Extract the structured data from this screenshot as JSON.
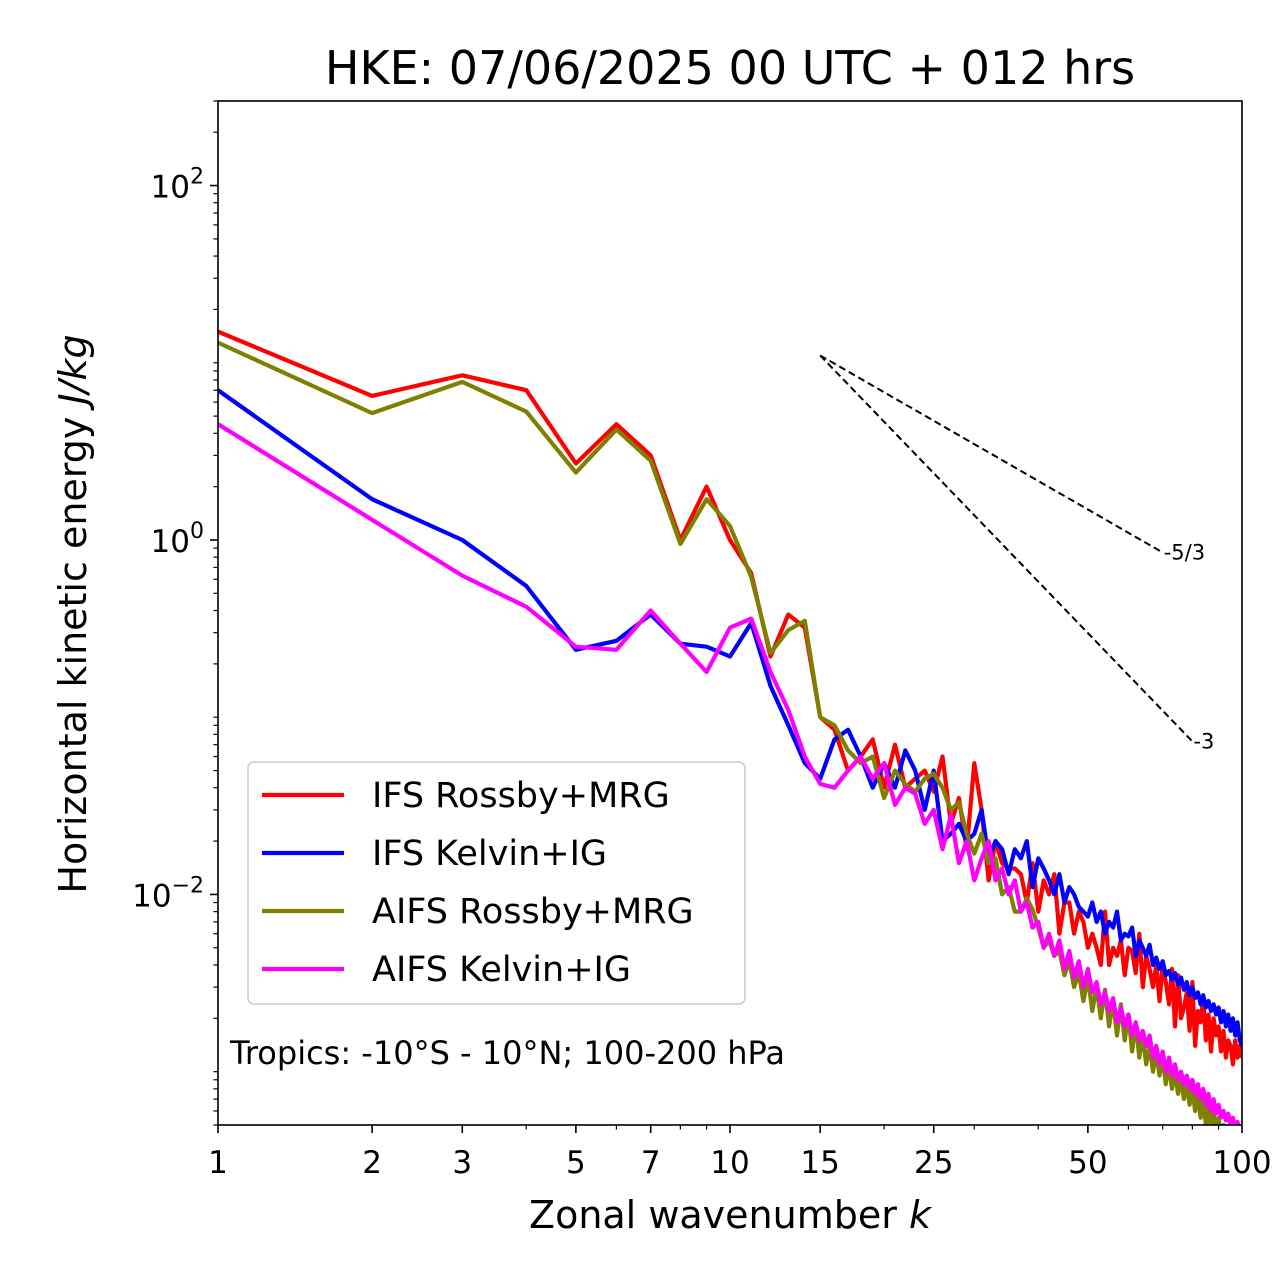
{
  "chart_data": {
    "type": "line",
    "title": "HKE: 07/06/2025 00 UTC + 012 hrs",
    "xlabel": "Zonal wavenumber",
    "xlabel_var": "k",
    "ylabel": "Horizontal kinetic energy",
    "ylabel_unit": "J/kg",
    "xscale": "log",
    "yscale": "log",
    "xlim": [
      1,
      100
    ],
    "ylim": [
      0.0005,
      300
    ],
    "x_ticks": [
      1,
      2,
      3,
      5,
      7,
      10,
      15,
      25,
      50,
      100
    ],
    "x_tick_labels": [
      "1",
      "2",
      "3",
      "5",
      "7",
      "10",
      "15",
      "25",
      "50",
      "100"
    ],
    "y_ticks": [
      0.01,
      1,
      100
    ],
    "y_tick_labels": [
      {
        "base": "10",
        "exp": "−2"
      },
      {
        "base": "10",
        "exp": "0"
      },
      {
        "base": "10",
        "exp": "2"
      }
    ],
    "grid": false,
    "legend_position": "lower-left",
    "annotation": "Tropics: -10°S - 10°N; 100-200 hPa",
    "reference_slopes": [
      {
        "label": "-5/3",
        "slope": -1.6667,
        "x_start": 15,
        "y_start": 11,
        "x_end": 70,
        "y_end": 0.85
      },
      {
        "label": "-3",
        "slope": -3,
        "x_start": 15,
        "y_start": 11,
        "x_end": 80,
        "y_end": 0.073
      }
    ],
    "series": [
      {
        "name": "IFS Rossby+MRG",
        "color": "#ff0000",
        "x": [
          1,
          2,
          3,
          4,
          5,
          6,
          7,
          8,
          9,
          10,
          11,
          12,
          13,
          14,
          15,
          16,
          17,
          18,
          19,
          20,
          21,
          22,
          23,
          24,
          25,
          26,
          27,
          28,
          29,
          30,
          31,
          32,
          33,
          34,
          35,
          36,
          37,
          38,
          39,
          40,
          41,
          42,
          43,
          44,
          45,
          46,
          47,
          48,
          49,
          50,
          51,
          52,
          53,
          54,
          55,
          56,
          57,
          58,
          59,
          60,
          61,
          62,
          63,
          64,
          65,
          66,
          67,
          68,
          69,
          70,
          71,
          72,
          73,
          74,
          75,
          76,
          77,
          78,
          79,
          80,
          81,
          82,
          83,
          84,
          85,
          86,
          87,
          88,
          89,
          90,
          91,
          92,
          93,
          94,
          95,
          96,
          97,
          98,
          99,
          100
        ],
        "y": [
          15,
          6.5,
          8.5,
          7,
          2.7,
          4.5,
          3,
          1,
          2,
          1,
          0.65,
          0.22,
          0.38,
          0.32,
          0.1,
          0.085,
          0.05,
          0.06,
          0.075,
          0.04,
          0.07,
          0.04,
          0.045,
          0.05,
          0.038,
          0.06,
          0.025,
          0.035,
          0.018,
          0.055,
          0.03,
          0.012,
          0.02,
          0.015,
          0.014,
          0.014,
          0.013,
          0.009,
          0.015,
          0.008,
          0.012,
          0.01,
          0.013,
          0.006,
          0.009,
          0.009,
          0.006,
          0.008,
          0.007,
          0.005,
          0.006,
          0.005,
          0.004,
          0.008,
          0.004,
          0.005,
          0.0045,
          0.0055,
          0.0035,
          0.005,
          0.0048,
          0.0036,
          0.006,
          0.003,
          0.0045,
          0.0038,
          0.003,
          0.004,
          0.0025,
          0.004,
          0.0032,
          0.0024,
          0.0038,
          0.0018,
          0.0035,
          0.002,
          0.0023,
          0.0028,
          0.0017,
          0.0032,
          0.0014,
          0.0022,
          0.0019,
          0.0026,
          0.0015,
          0.0021,
          0.0013,
          0.002,
          0.0016,
          0.0018,
          0.0013,
          0.0017,
          0.0012,
          0.0015,
          0.0014,
          0.0011,
          0.0015,
          0.0012,
          0.0014,
          0.0012
        ]
      },
      {
        "name": "IFS Kelvin+IG",
        "color": "#0000ff",
        "x": [
          1,
          2,
          3,
          4,
          5,
          6,
          7,
          8,
          9,
          10,
          11,
          12,
          13,
          14,
          15,
          16,
          17,
          18,
          19,
          20,
          21,
          22,
          23,
          24,
          25,
          26,
          27,
          28,
          29,
          30,
          31,
          32,
          33,
          34,
          35,
          36,
          37,
          38,
          39,
          40,
          41,
          42,
          43,
          44,
          45,
          46,
          47,
          48,
          49,
          50,
          51,
          52,
          53,
          54,
          55,
          56,
          57,
          58,
          59,
          60,
          61,
          62,
          63,
          64,
          65,
          66,
          67,
          68,
          69,
          70,
          71,
          72,
          73,
          74,
          75,
          76,
          77,
          78,
          79,
          80,
          81,
          82,
          83,
          84,
          85,
          86,
          87,
          88,
          89,
          90,
          91,
          92,
          93,
          94,
          95,
          96,
          97,
          98,
          99,
          100
        ],
        "y": [
          7,
          1.7,
          1,
          0.55,
          0.24,
          0.27,
          0.38,
          0.26,
          0.25,
          0.22,
          0.34,
          0.15,
          0.09,
          0.055,
          0.045,
          0.075,
          0.085,
          0.06,
          0.04,
          0.055,
          0.04,
          0.065,
          0.05,
          0.03,
          0.05,
          0.02,
          0.022,
          0.025,
          0.02,
          0.022,
          0.03,
          0.016,
          0.02,
          0.018,
          0.013,
          0.018,
          0.016,
          0.02,
          0.011,
          0.016,
          0.014,
          0.012,
          0.01,
          0.013,
          0.009,
          0.011,
          0.01,
          0.0085,
          0.008,
          0.0075,
          0.009,
          0.007,
          0.008,
          0.006,
          0.007,
          0.0065,
          0.008,
          0.0055,
          0.006,
          0.0058,
          0.0065,
          0.0045,
          0.0055,
          0.005,
          0.0045,
          0.0052,
          0.004,
          0.0044,
          0.0038,
          0.0042,
          0.0035,
          0.0037,
          0.0033,
          0.0036,
          0.0031,
          0.0034,
          0.0029,
          0.0032,
          0.0027,
          0.003,
          0.0026,
          0.0028,
          0.0024,
          0.0027,
          0.0023,
          0.0025,
          0.0022,
          0.0024,
          0.0021,
          0.0023,
          0.0019,
          0.0022,
          0.0018,
          0.0021,
          0.0017,
          0.002,
          0.0016,
          0.0019,
          0.0015,
          0.0014
        ]
      },
      {
        "name": "AIFS Rossby+MRG",
        "color": "#808000",
        "x": [
          1,
          2,
          3,
          4,
          5,
          6,
          7,
          8,
          9,
          10,
          11,
          12,
          13,
          14,
          15,
          16,
          17,
          18,
          19,
          20,
          21,
          22,
          23,
          24,
          25,
          26,
          27,
          28,
          29,
          30,
          31,
          32,
          33,
          34,
          35,
          36,
          37,
          38,
          39,
          40,
          41,
          42,
          43,
          44,
          45,
          46,
          47,
          48,
          49,
          50,
          51,
          52,
          53,
          54,
          55,
          56,
          57,
          58,
          59,
          60,
          61,
          62,
          63,
          64,
          65,
          66,
          67,
          68,
          69,
          70,
          71,
          72,
          73,
          74,
          75,
          76,
          77,
          78,
          79,
          80,
          81,
          82,
          83,
          84,
          85,
          86,
          87,
          88,
          89,
          90,
          91,
          92,
          93,
          94,
          95,
          96,
          97,
          98,
          99,
          100
        ],
        "y": [
          13,
          5.2,
          7.8,
          5.3,
          2.4,
          4.2,
          2.8,
          0.95,
          1.7,
          1.2,
          0.62,
          0.23,
          0.31,
          0.35,
          0.1,
          0.09,
          0.065,
          0.055,
          0.06,
          0.035,
          0.05,
          0.042,
          0.038,
          0.045,
          0.048,
          0.04,
          0.03,
          0.033,
          0.022,
          0.017,
          0.022,
          0.015,
          0.016,
          0.01,
          0.011,
          0.008,
          0.008,
          0.0095,
          0.0082,
          0.0065,
          0.005,
          0.0055,
          0.0045,
          0.0048,
          0.0035,
          0.0042,
          0.003,
          0.0036,
          0.0025,
          0.0034,
          0.0022,
          0.003,
          0.002,
          0.0029,
          0.0018,
          0.0025,
          0.0016,
          0.0024,
          0.0015,
          0.0021,
          0.0013,
          0.0019,
          0.0012,
          0.0016,
          0.0011,
          0.0014,
          0.001,
          0.0013,
          0.00095,
          0.0012,
          0.00085,
          0.0011,
          0.0008,
          0.001,
          0.00075,
          0.0009,
          0.0007,
          0.00085,
          0.00065,
          0.0008,
          0.0006,
          0.00075,
          0.00055,
          0.0007,
          0.0005,
          0.00065,
          0.00048,
          0.0006,
          0.00045,
          0.00055,
          0.00042,
          0.0005,
          0.0004,
          0.00047,
          0.00038,
          0.00045,
          0.00036,
          0.00043,
          0.00034,
          0.0004
        ]
      },
      {
        "name": "AIFS Kelvin+IG",
        "color": "#ff00ff",
        "x": [
          1,
          2,
          3,
          4,
          5,
          6,
          7,
          8,
          9,
          10,
          11,
          12,
          13,
          14,
          15,
          16,
          17,
          18,
          19,
          20,
          21,
          22,
          23,
          24,
          25,
          26,
          27,
          28,
          29,
          30,
          31,
          32,
          33,
          34,
          35,
          36,
          37,
          38,
          39,
          40,
          41,
          42,
          43,
          44,
          45,
          46,
          47,
          48,
          49,
          50,
          51,
          52,
          53,
          54,
          55,
          56,
          57,
          58,
          59,
          60,
          61,
          62,
          63,
          64,
          65,
          66,
          67,
          68,
          69,
          70,
          71,
          72,
          73,
          74,
          75,
          76,
          77,
          78,
          79,
          80,
          81,
          82,
          83,
          84,
          85,
          86,
          87,
          88,
          89,
          90,
          91,
          92,
          93,
          94,
          95,
          96,
          97,
          98,
          99,
          100
        ],
        "y": [
          4.5,
          1.3,
          0.63,
          0.42,
          0.25,
          0.24,
          0.4,
          0.26,
          0.18,
          0.32,
          0.36,
          0.18,
          0.11,
          0.06,
          0.042,
          0.04,
          0.05,
          0.06,
          0.045,
          0.055,
          0.032,
          0.04,
          0.037,
          0.025,
          0.03,
          0.018,
          0.028,
          0.015,
          0.02,
          0.012,
          0.016,
          0.02,
          0.012,
          0.014,
          0.01,
          0.012,
          0.008,
          0.009,
          0.0065,
          0.007,
          0.005,
          0.006,
          0.0045,
          0.0055,
          0.0038,
          0.0048,
          0.0034,
          0.0042,
          0.003,
          0.0038,
          0.0028,
          0.0032,
          0.0024,
          0.0028,
          0.0022,
          0.0026,
          0.0019,
          0.0023,
          0.0018,
          0.0021,
          0.0016,
          0.0019,
          0.0015,
          0.0017,
          0.0014,
          0.0016,
          0.0012,
          0.0014,
          0.0011,
          0.0013,
          0.001,
          0.0012,
          0.00095,
          0.0011,
          0.0009,
          0.001,
          0.00085,
          0.00095,
          0.0008,
          0.0009,
          0.00075,
          0.00085,
          0.0007,
          0.0008,
          0.00065,
          0.00075,
          0.0006,
          0.0007,
          0.00058,
          0.00065,
          0.00055,
          0.0006,
          0.00053,
          0.00058,
          0.0005,
          0.00055,
          0.00048,
          0.00052,
          0.00046,
          0.0005
        ]
      }
    ]
  }
}
